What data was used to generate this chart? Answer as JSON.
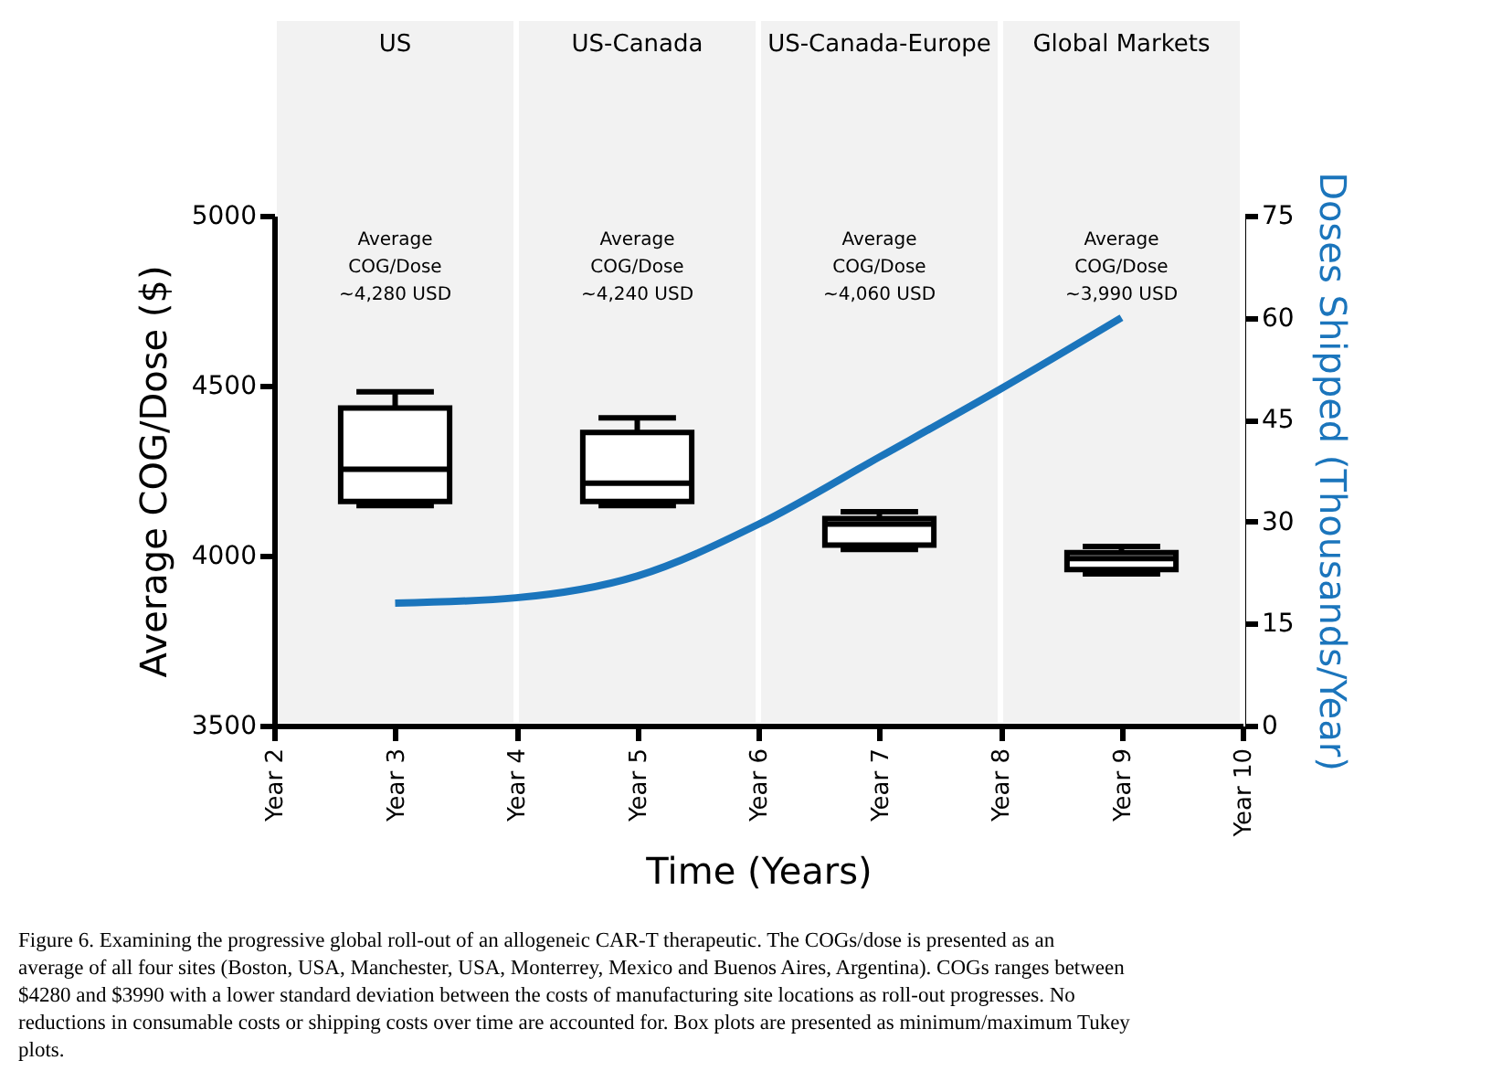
{
  "chart_data": {
    "type": "box",
    "xlabel": "Time (Years)",
    "ylabel": "Average COG/Dose ($)",
    "y2label": "Doses Shipped (Thousands/Year)",
    "categories": [
      "Year 2",
      "Year 3",
      "Year 4",
      "Year 5",
      "Year 6",
      "Year 7",
      "Year 8",
      "Year 9",
      "Year 10"
    ],
    "ylim": [
      3500,
      5000
    ],
    "yticks": [
      3500,
      4000,
      4500,
      5000
    ],
    "y2lim": [
      0,
      75
    ],
    "y2ticks": [
      0,
      15,
      30,
      45,
      60,
      75
    ],
    "series": [
      {
        "color": "#000000",
        "x": [
          "Year 3",
          "Year 5",
          "Year 7",
          "Year 9"
        ],
        "boxes": [
          {
            "low": 4147,
            "q1": 4159,
            "median": 4254,
            "q3": 4434,
            "high": 4482
          },
          {
            "low": 4147,
            "q1": 4159,
            "median": 4213,
            "q3": 4362,
            "high": 4405
          },
          {
            "low": 4018,
            "q1": 4031,
            "median": 4093,
            "q3": 4109,
            "high": 4129
          },
          {
            "low": 3946,
            "q1": 3959,
            "median": 3991,
            "q3": 4009,
            "high": 4027
          }
        ]
      },
      {
        "type": "line",
        "axis": "y2",
        "color": "#1b75bc",
        "values": [
          null,
          18,
          18.8,
          22,
          29.6,
          39.5,
          49.5,
          60,
          null
        ]
      }
    ],
    "bands": [
      {
        "axis": "x",
        "from": "Year 2",
        "to": "Year 4",
        "label": "US",
        "color": "#f2f2f2"
      },
      {
        "axis": "x",
        "from": "Year 4",
        "to": "Year 6",
        "label": "US-Canada",
        "color": "#f2f2f2"
      },
      {
        "axis": "x",
        "from": "Year 6",
        "to": "Year 8",
        "label": "US-Canada-Europe",
        "color": "#f2f2f2"
      },
      {
        "axis": "x",
        "from": "Year 8",
        "to": "Year 10",
        "label": "Global Markets",
        "color": "#f2f2f2"
      }
    ],
    "annotations": [
      "Average\nCOG/Dose\n~4,280 USD",
      "Average\nCOG/Dose\n~4,240 USD",
      "Average\nCOG/Dose\n~4,060 USD",
      "Average\nCOG/Dose\n~3,990 USD",
      "Figure 6.  Examining the progressive global roll-out of an allogeneic CAR-T therapeutic. The COGs/dose is presented as an average of all four sites (Boston, USA, Manchester, USA, Monterrey, Mexico and Buenos Aires, Argentina). COGs ranges between $4280 and $3990 with a lower standard deviation between the costs of manufacturing site locations as roll-out progresses. No reductions in consumable costs or shipping costs over time are accounted for. Box plots are presented as minimum/maximum Tukey plots."
    ]
  }
}
